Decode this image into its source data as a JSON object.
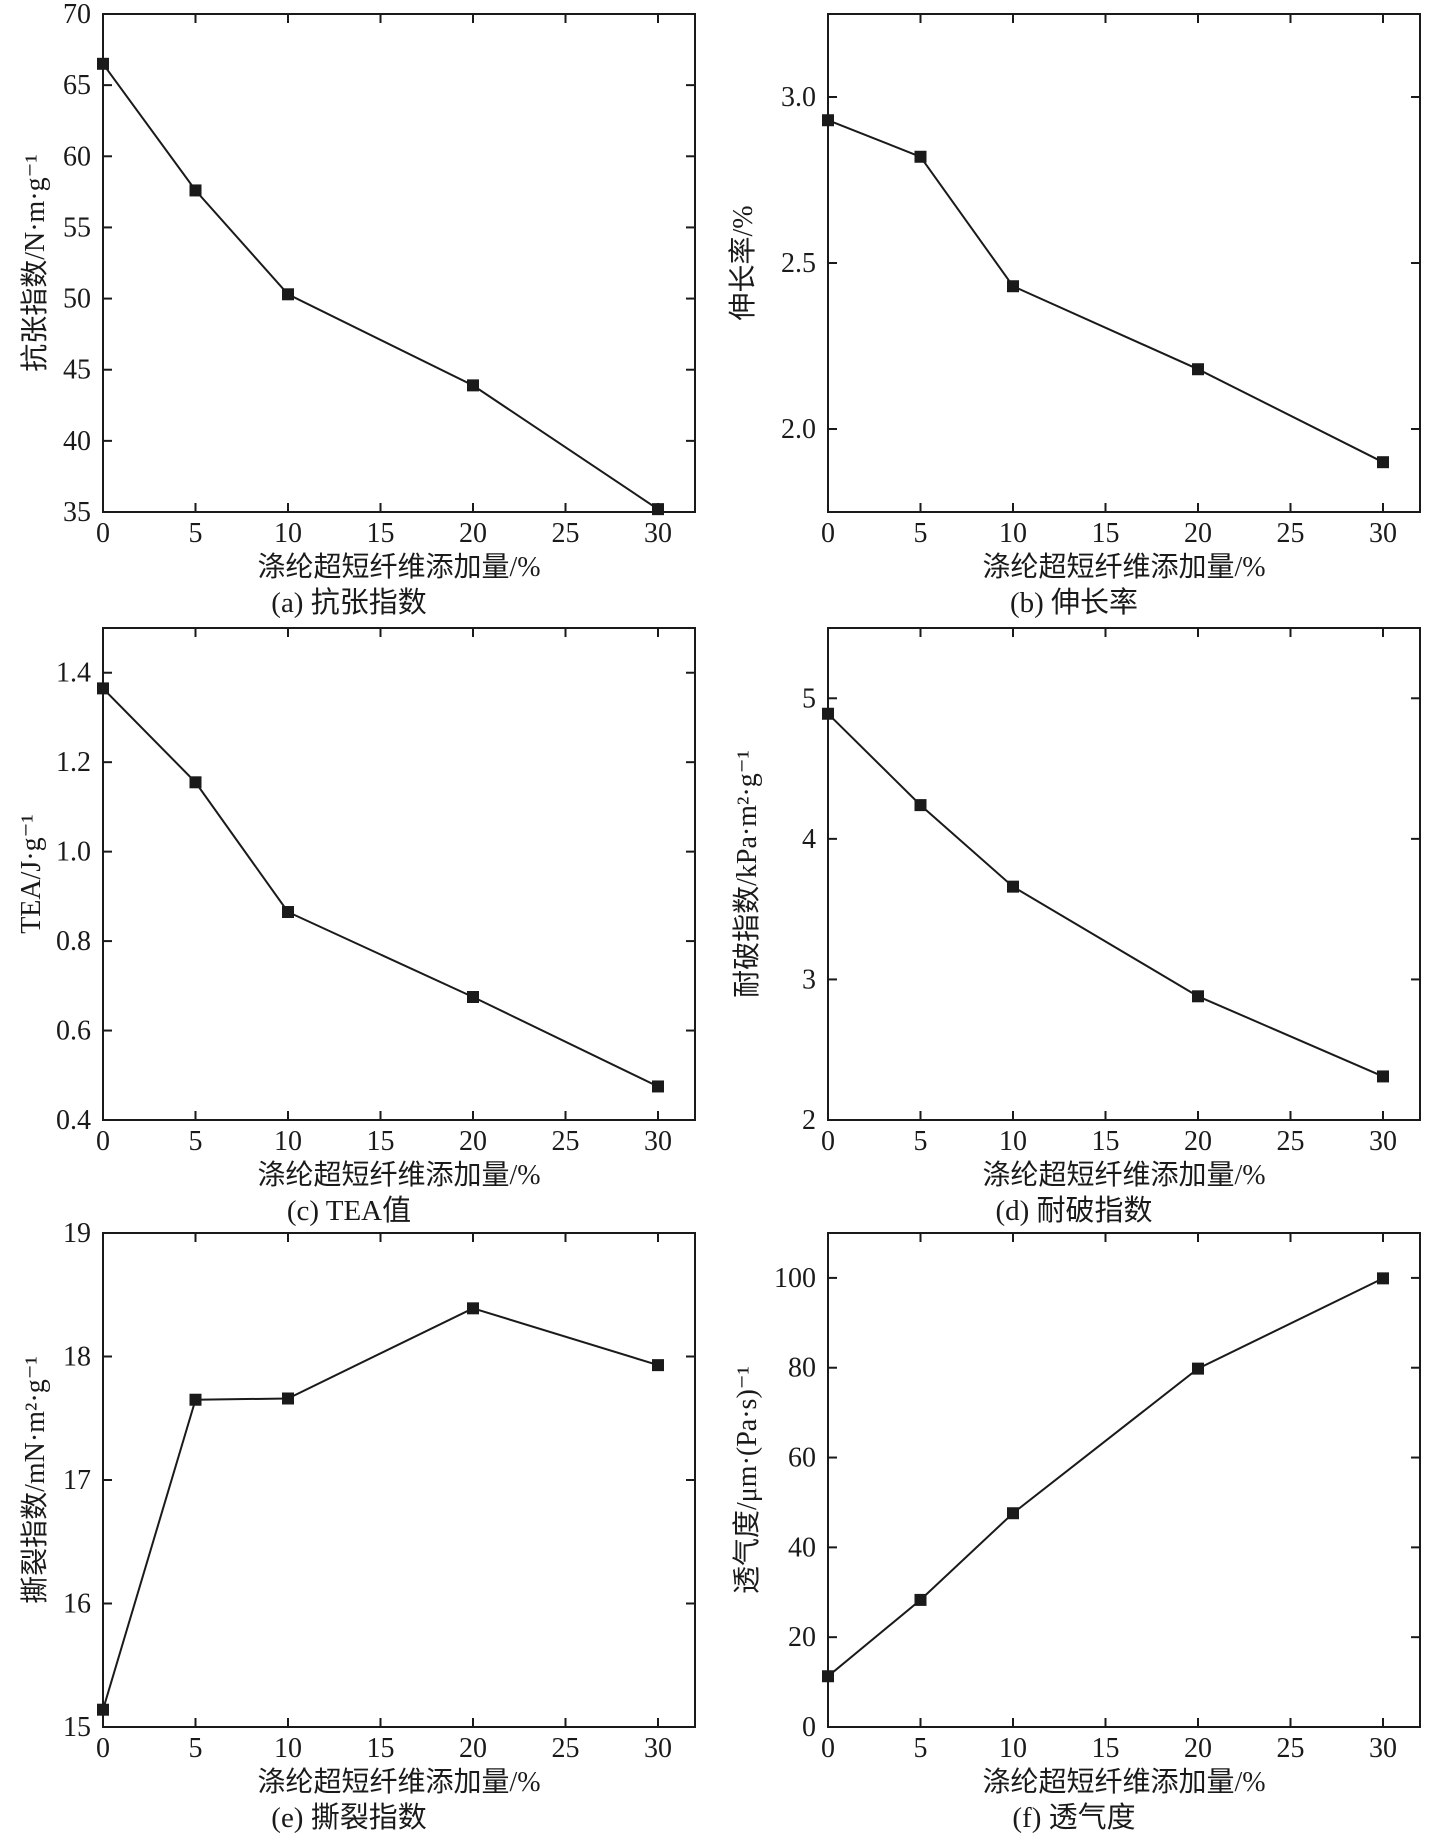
{
  "chart_data": [
    {
      "type": "line",
      "caption": "(a) 抗张指数",
      "xlabel": "涤纶超短纤维添加量/%",
      "ylabel": "抗张指数/N·m·g⁻¹",
      "xlim": [
        0,
        32
      ],
      "ylim": [
        35,
        70
      ],
      "xticks": [
        0,
        5,
        10,
        15,
        20,
        25,
        30
      ],
      "xtick_labels": [
        "0",
        "5",
        "10",
        "15",
        "20",
        "25",
        "30"
      ],
      "yticks": [
        35,
        40,
        45,
        50,
        55,
        60,
        65,
        70
      ],
      "ytick_labels": [
        "35",
        "40",
        "45",
        "50",
        "55",
        "60",
        "65",
        "70"
      ],
      "x": [
        0,
        5,
        10,
        20,
        30
      ],
      "y": [
        66.5,
        57.6,
        50.3,
        43.9,
        35.2
      ],
      "marker": "square",
      "grid": false
    },
    {
      "type": "line",
      "caption": "(b)  伸长率",
      "xlabel": "涤纶超短纤维添加量/%",
      "ylabel": "伸长率/%",
      "xlim": [
        0,
        32
      ],
      "ylim": [
        1.75,
        3.25
      ],
      "xticks": [
        0,
        5,
        10,
        15,
        20,
        25,
        30
      ],
      "xtick_labels": [
        "0",
        "5",
        "10",
        "15",
        "20",
        "25",
        "30"
      ],
      "yticks": [
        2.0,
        2.5,
        3.0
      ],
      "ytick_labels": [
        "2.0",
        "2.5",
        "3.0"
      ],
      "x": [
        0,
        5,
        10,
        20,
        30
      ],
      "y": [
        2.93,
        2.82,
        2.43,
        2.18,
        1.9
      ],
      "marker": "square",
      "grid": false
    },
    {
      "type": "line",
      "caption": "(c) TEA值",
      "xlabel": "涤纶超短纤维添加量/%",
      "ylabel": "TEA/J·g⁻¹",
      "xlim": [
        0,
        32
      ],
      "ylim": [
        0.4,
        1.5
      ],
      "xticks": [
        0,
        5,
        10,
        15,
        20,
        25,
        30
      ],
      "xtick_labels": [
        "0",
        "5",
        "10",
        "15",
        "20",
        "25",
        "30"
      ],
      "yticks": [
        0.4,
        0.6,
        0.8,
        1.0,
        1.2,
        1.4
      ],
      "ytick_labels": [
        "0.4",
        "0.6",
        "0.8",
        "1.0",
        "1.2",
        "1.4"
      ],
      "x": [
        0,
        5,
        10,
        20,
        30
      ],
      "y": [
        1.365,
        1.155,
        0.865,
        0.675,
        0.475
      ],
      "marker": "square",
      "grid": false
    },
    {
      "type": "line",
      "caption": "(d) 耐破指数",
      "xlabel": "涤纶超短纤维添加量/%",
      "ylabel": "耐破指数/kPa·m²·g⁻¹",
      "xlim": [
        0,
        32
      ],
      "ylim": [
        2,
        5.5
      ],
      "xticks": [
        0,
        5,
        10,
        15,
        20,
        25,
        30
      ],
      "xtick_labels": [
        "0",
        "5",
        "10",
        "15",
        "20",
        "25",
        "30"
      ],
      "yticks": [
        2,
        3,
        4,
        5
      ],
      "ytick_labels": [
        "2",
        "3",
        "4",
        "5"
      ],
      "x": [
        0,
        5,
        10,
        20,
        30
      ],
      "y": [
        4.89,
        4.24,
        3.66,
        2.88,
        2.31
      ],
      "marker": "square",
      "grid": false
    },
    {
      "type": "line",
      "caption": "(e) 撕裂指数",
      "xlabel": "涤纶超短纤维添加量/%",
      "ylabel": "撕裂指数/mN·m²·g⁻¹",
      "xlim": [
        0,
        32
      ],
      "ylim": [
        15,
        19
      ],
      "xticks": [
        0,
        5,
        10,
        15,
        20,
        25,
        30
      ],
      "xtick_labels": [
        "0",
        "5",
        "10",
        "15",
        "20",
        "25",
        "30"
      ],
      "yticks": [
        15,
        16,
        17,
        18,
        19
      ],
      "ytick_labels": [
        "15",
        "16",
        "17",
        "18",
        "19"
      ],
      "x": [
        0,
        5,
        10,
        20,
        30
      ],
      "y": [
        15.14,
        17.65,
        17.66,
        18.39,
        17.93
      ],
      "marker": "square",
      "grid": false
    },
    {
      "type": "line",
      "caption": "(f) 透气度",
      "xlabel": "涤纶超短纤维添加量/%",
      "ylabel": "透气度/μm·(Pa·s)⁻¹",
      "xlim": [
        0,
        32
      ],
      "ylim": [
        0,
        110
      ],
      "xticks": [
        0,
        5,
        10,
        15,
        20,
        25,
        30
      ],
      "xtick_labels": [
        "0",
        "5",
        "10",
        "15",
        "20",
        "25",
        "30"
      ],
      "yticks": [
        0,
        20,
        40,
        60,
        80,
        100
      ],
      "ytick_labels": [
        "0",
        "20",
        "40",
        "60",
        "80",
        "100"
      ],
      "x": [
        0,
        5,
        10,
        20,
        30
      ],
      "y": [
        11.3,
        28.3,
        47.6,
        79.8,
        99.9
      ],
      "marker": "square",
      "grid": false
    }
  ]
}
